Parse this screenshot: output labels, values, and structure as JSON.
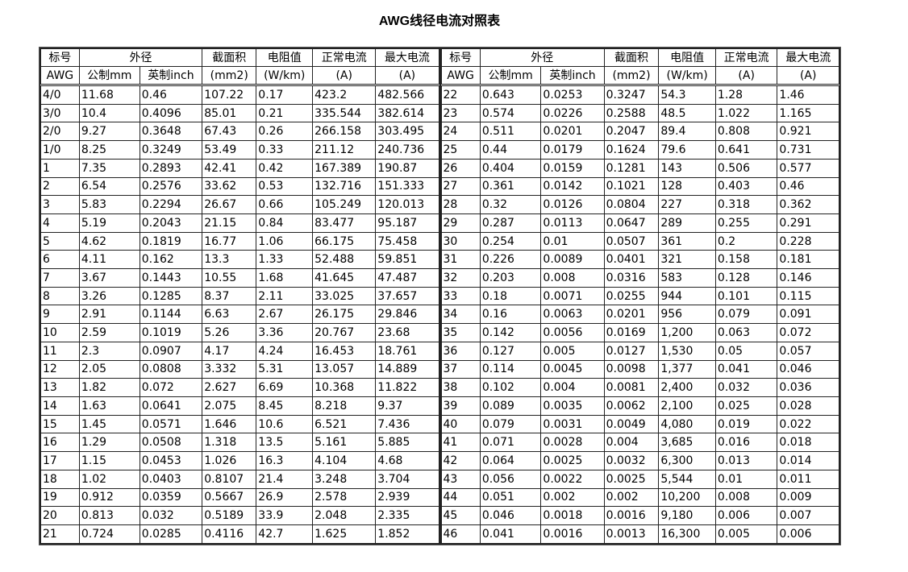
{
  "title": "AWG线径电流对照表",
  "headers": {
    "row1": [
      "标号",
      "外径",
      "截面积",
      "电阻值",
      "正常电流",
      "最大电流"
    ],
    "row2": [
      "AWG",
      "公制mm",
      "英制inch",
      "(mm2)",
      "(W/km)",
      "(A)",
      "(A)"
    ]
  },
  "left_rows": [
    [
      "4/0",
      "11.68",
      "0.46",
      "107.22",
      "0.17",
      "423.2",
      "482.566"
    ],
    [
      "3/0",
      "10.4",
      "0.4096",
      "85.01",
      "0.21",
      "335.544",
      "382.614"
    ],
    [
      "2/0",
      "9.27",
      "0.3648",
      "67.43",
      "0.26",
      "266.158",
      "303.495"
    ],
    [
      "1/0",
      "8.25",
      "0.3249",
      "53.49",
      "0.33",
      "211.12",
      "240.736"
    ],
    [
      "1",
      "7.35",
      "0.2893",
      "42.41",
      "0.42",
      "167.389",
      "190.87"
    ],
    [
      "2",
      "6.54",
      "0.2576",
      "33.62",
      "0.53",
      "132.716",
      "151.333"
    ],
    [
      "3",
      "5.83",
      "0.2294",
      "26.67",
      "0.66",
      "105.249",
      "120.013"
    ],
    [
      "4",
      "5.19",
      "0.2043",
      "21.15",
      "0.84",
      "83.477",
      "95.187"
    ],
    [
      "5",
      "4.62",
      "0.1819",
      "16.77",
      "1.06",
      "66.175",
      "75.458"
    ],
    [
      "6",
      "4.11",
      "0.162",
      "13.3",
      "1.33",
      "52.488",
      "59.851"
    ],
    [
      "7",
      "3.67",
      "0.1443",
      "10.55",
      "1.68",
      "41.645",
      "47.487"
    ],
    [
      "8",
      "3.26",
      "0.1285",
      "8.37",
      "2.11",
      "33.025",
      "37.657"
    ],
    [
      "9",
      "2.91",
      "0.1144",
      "6.63",
      "2.67",
      "26.175",
      "29.846"
    ],
    [
      "10",
      "2.59",
      "0.1019",
      "5.26",
      "3.36",
      "20.767",
      "23.68"
    ],
    [
      "11",
      "2.3",
      "0.0907",
      "4.17",
      "4.24",
      "16.453",
      "18.761"
    ],
    [
      "12",
      "2.05",
      "0.0808",
      "3.332",
      "5.31",
      "13.057",
      "14.889"
    ],
    [
      "13",
      "1.82",
      "0.072",
      "2.627",
      "6.69",
      "10.368",
      "11.822"
    ],
    [
      "14",
      "1.63",
      "0.0641",
      "2.075",
      "8.45",
      "8.218",
      "9.37"
    ],
    [
      "15",
      "1.45",
      "0.0571",
      "1.646",
      "10.6",
      "6.521",
      "7.436"
    ],
    [
      "16",
      "1.29",
      "0.0508",
      "1.318",
      "13.5",
      "5.161",
      "5.885"
    ],
    [
      "17",
      "1.15",
      "0.0453",
      "1.026",
      "16.3",
      "4.104",
      "4.68"
    ],
    [
      "18",
      "1.02",
      "0.0403",
      "0.8107",
      "21.4",
      "3.248",
      "3.704"
    ],
    [
      "19",
      "0.912",
      "0.0359",
      "0.5667",
      "26.9",
      "2.578",
      "2.939"
    ],
    [
      "20",
      "0.813",
      "0.032",
      "0.5189",
      "33.9",
      "2.048",
      "2.335"
    ],
    [
      "21",
      "0.724",
      "0.0285",
      "0.4116",
      "42.7",
      "1.625",
      "1.852"
    ]
  ],
  "right_rows": [
    [
      "22",
      "0.643",
      "0.0253",
      "0.3247",
      "54.3",
      "1.28",
      "1.46"
    ],
    [
      "23",
      "0.574",
      "0.0226",
      "0.2588",
      "48.5",
      "1.022",
      "1.165"
    ],
    [
      "24",
      "0.511",
      "0.0201",
      "0.2047",
      "89.4",
      "0.808",
      "0.921"
    ],
    [
      "25",
      "0.44",
      "0.0179",
      "0.1624",
      "79.6",
      "0.641",
      "0.731"
    ],
    [
      "26",
      "0.404",
      "0.0159",
      "0.1281",
      "143",
      "0.506",
      "0.577"
    ],
    [
      "27",
      "0.361",
      "0.0142",
      "0.1021",
      "128",
      "0.403",
      "0.46"
    ],
    [
      "28",
      "0.32",
      "0.0126",
      "0.0804",
      "227",
      "0.318",
      "0.362"
    ],
    [
      "29",
      "0.287",
      "0.0113",
      "0.0647",
      "289",
      "0.255",
      "0.291"
    ],
    [
      "30",
      "0.254",
      "0.01",
      "0.0507",
      "361",
      "0.2",
      "0.228"
    ],
    [
      "31",
      "0.226",
      "0.0089",
      "0.0401",
      "321",
      "0.158",
      "0.181"
    ],
    [
      "32",
      "0.203",
      "0.008",
      "0.0316",
      "583",
      "0.128",
      "0.146"
    ],
    [
      "33",
      "0.18",
      "0.0071",
      "0.0255",
      "944",
      "0.101",
      "0.115"
    ],
    [
      "34",
      "0.16",
      "0.0063",
      "0.0201",
      "956",
      "0.079",
      "0.091"
    ],
    [
      "35",
      "0.142",
      "0.0056",
      "0.0169",
      "1,200",
      "0.063",
      "0.072"
    ],
    [
      "36",
      "0.127",
      "0.005",
      "0.0127",
      "1,530",
      "0.05",
      "0.057"
    ],
    [
      "37",
      "0.114",
      "0.0045",
      "0.0098",
      "1,377",
      "0.041",
      "0.046"
    ],
    [
      "38",
      "0.102",
      "0.004",
      "0.0081",
      "2,400",
      "0.032",
      "0.036"
    ],
    [
      "39",
      "0.089",
      "0.0035",
      "0.0062",
      "2,100",
      "0.025",
      "0.028"
    ],
    [
      "40",
      "0.079",
      "0.0031",
      "0.0049",
      "4,080",
      "0.019",
      "0.022"
    ],
    [
      "41",
      "0.071",
      "0.0028",
      "0.004",
      "3,685",
      "0.016",
      "0.018"
    ],
    [
      "42",
      "0.064",
      "0.0025",
      "0.0032",
      "6,300",
      "0.013",
      "0.014"
    ],
    [
      "43",
      "0.056",
      "0.0022",
      "0.0025",
      "5,544",
      "0.01",
      "0.011"
    ],
    [
      "44",
      "0.051",
      "0.002",
      "0.002",
      "10,200",
      "0.008",
      "0.009"
    ],
    [
      "45",
      "0.046",
      "0.0018",
      "0.0016",
      "9,180",
      "0.006",
      "0.007"
    ],
    [
      "46",
      "0.041",
      "0.0016",
      "0.0013",
      "16,300",
      "0.005",
      "0.006"
    ]
  ]
}
